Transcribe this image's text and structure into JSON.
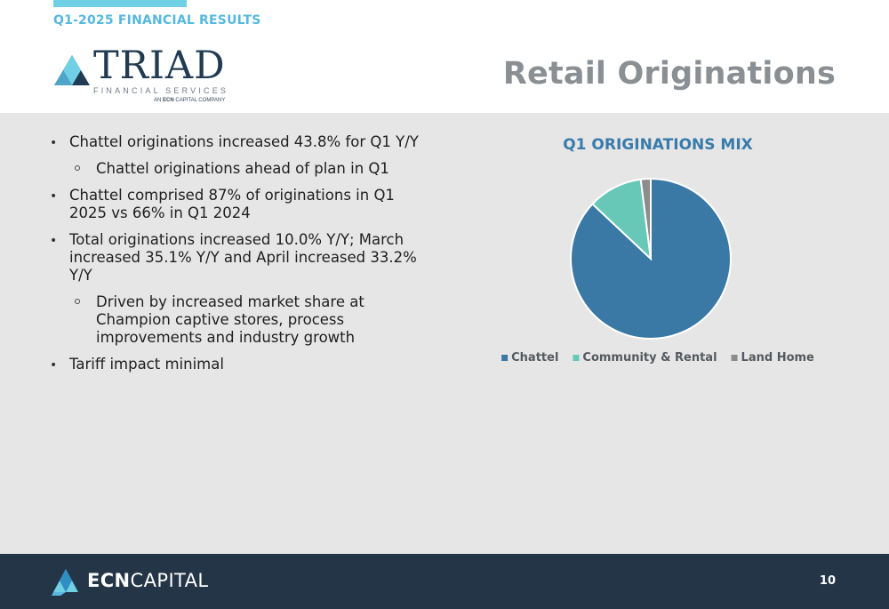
{
  "header": {
    "kicker": "Q1-2025 FINANCIAL RESULTS",
    "title": "Retail Originations",
    "accent_color": "#6fd0e6"
  },
  "triad_logo": {
    "name": "TRIAD",
    "subtitle": "FINANCIAL SERVICES",
    "tagline_prefix": "AN",
    "tagline_bold": "ECN",
    "tagline_suffix": "CAPITAL COMPANY",
    "icon": "triangle-logo-icon"
  },
  "bullets": [
    {
      "level": 1,
      "text": "Chattel originations increased 43.8% for Q1 Y/Y"
    },
    {
      "level": 2,
      "text": "Chattel originations ahead of plan in Q1"
    },
    {
      "level": 1,
      "text": "Chattel comprised 87% of originations in Q1 2025 vs 66% in Q1 2024"
    },
    {
      "level": 1,
      "text": "Total originations increased 10.0% Y/Y; March increased 35.1% Y/Y and April increased 33.2% Y/Y"
    },
    {
      "level": 2,
      "text": "Driven by increased market share at Champion captive stores, process improvements and industry growth"
    },
    {
      "level": 1,
      "text": "Tariff impact minimal"
    }
  ],
  "chart_data": {
    "type": "pie",
    "title": "Q1 ORIGINATIONS MIX",
    "categories": [
      "Chattel",
      "Community & Rental",
      "Land Home"
    ],
    "values": [
      87,
      11,
      2
    ],
    "colors": [
      "#3a78a6",
      "#68c8b8",
      "#8c8c8c"
    ],
    "legend_position": "bottom"
  },
  "footer": {
    "brand_bold": "ECN",
    "brand_light": "CAPITAL",
    "page_number": "10",
    "icon": "ecn-triangle-logo-icon"
  }
}
